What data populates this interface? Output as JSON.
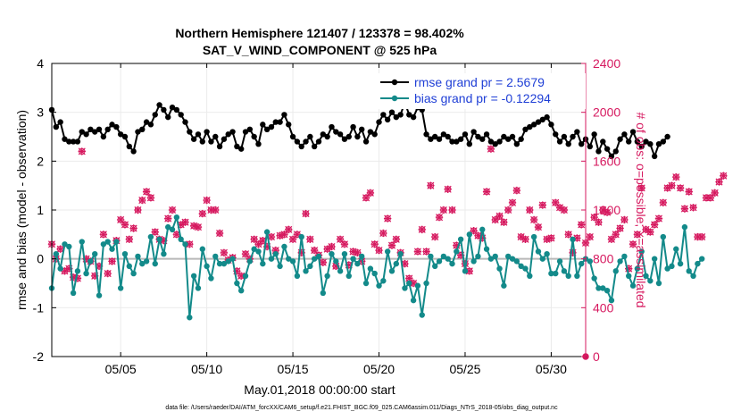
{
  "title_line1": "Northern Hemisphere 121407 / 123378 = 98.402%",
  "title_line2": "SAT_V_WIND_COMPONENT @ 525 hPa",
  "footer": "data file: /Users/raeder/DAI/ATM_forcXX/CAM6_setup/f.e21.FHIST_BGC.f09_025.CAM6assim.011/Diags_NTrS_2018-05/obs_diag_output.nc",
  "colors": {
    "rmse": "#000000",
    "bias": "#138a8a",
    "obs": "#d6195f",
    "zero_line": "#b8b8b8",
    "grid": "#ebebeb"
  },
  "chart_data": {
    "type": "line",
    "xlabel": "May.01,2018 00:00:00 start",
    "ylabel": "rmse and bias (model - observation)",
    "y2label": "# of obs: o=possible; ×=assimilated",
    "xlim": [
      1,
      32
    ],
    "ylim": [
      -2,
      4
    ],
    "y2lim": [
      0,
      2400
    ],
    "x_ticks": [
      5,
      10,
      15,
      20,
      25,
      30
    ],
    "x_tick_labels": [
      "05/05",
      "05/10",
      "05/15",
      "05/20",
      "05/25",
      "05/30"
    ],
    "y_ticks": [
      -2,
      -1,
      0,
      1,
      2,
      3,
      4
    ],
    "y_tick_labels": [
      "-2",
      "-1",
      "0",
      "1",
      "2",
      "3",
      "4"
    ],
    "y2_ticks": [
      0,
      400,
      800,
      1200,
      1600,
      2000,
      2400
    ],
    "y2_tick_labels": [
      "0",
      "400",
      "800",
      "1200",
      "1600",
      "2000",
      "2400"
    ],
    "grid": true,
    "legend_position": "top-right",
    "x_start": 1.0,
    "x_step": 0.25,
    "series": [
      {
        "name": "rmse grand pr = 2.5679",
        "values": [
          3.05,
          2.7,
          2.8,
          2.45,
          2.4,
          2.4,
          2.4,
          2.6,
          2.55,
          2.65,
          2.6,
          2.65,
          2.5,
          2.65,
          2.75,
          2.7,
          2.55,
          2.5,
          2.3,
          2.2,
          2.6,
          2.65,
          2.8,
          2.75,
          2.95,
          3.15,
          3.05,
          2.9,
          3.1,
          3.05,
          2.95,
          2.8,
          2.6,
          2.45,
          2.55,
          2.4,
          2.6,
          2.4,
          2.5,
          2.3,
          2.45,
          2.55,
          2.6,
          2.3,
          2.25,
          2.6,
          2.65,
          2.5,
          2.35,
          2.75,
          2.65,
          2.7,
          2.8,
          2.8,
          2.95,
          2.75,
          2.5,
          2.4,
          2.3,
          2.4,
          2.5,
          2.3,
          2.4,
          2.55,
          2.5,
          2.7,
          2.6,
          2.55,
          2.45,
          2.5,
          2.7,
          2.5,
          2.65,
          2.4,
          2.6,
          2.55,
          2.8,
          2.95,
          2.85,
          3.0,
          2.9,
          2.95,
          3.2,
          2.95,
          2.9,
          3.1,
          3.05,
          2.55,
          2.45,
          2.5,
          2.45,
          2.55,
          2.5,
          2.4,
          2.4,
          2.45,
          2.55,
          2.35,
          2.6,
          2.5,
          2.45,
          2.55,
          2.4,
          2.35,
          2.4,
          2.5,
          2.45,
          2.5,
          2.35,
          2.45,
          2.65,
          2.7,
          2.75,
          2.8,
          2.85,
          2.9,
          2.75,
          2.55,
          2.4,
          2.5,
          2.35,
          2.5,
          2.6,
          2.35,
          2.45,
          2.3,
          2.55,
          2.2,
          2.4,
          2.25,
          2.1,
          2.2,
          2.45,
          2.55,
          2.4,
          2.6,
          2.4,
          2.3,
          2.4,
          2.35,
          2.1,
          2.35,
          2.4,
          2.5
        ]
      },
      {
        "name": "bias grand pr = -0.12294",
        "values": [
          -0.6,
          0.1,
          -0.2,
          0.3,
          0.25,
          -0.7,
          -0.25,
          0.35,
          -0.3,
          -0.05,
          0.1,
          -0.75,
          0.3,
          0.35,
          0.2,
          0.35,
          -0.6,
          0.1,
          -0.15,
          -0.3,
          0.05,
          -0.1,
          -0.05,
          0.45,
          -0.1,
          0.4,
          0.1,
          0.65,
          0.6,
          0.85,
          0.4,
          0.3,
          -1.2,
          -0.35,
          -0.6,
          0.2,
          -0.15,
          -0.4,
          0.05,
          -0.1,
          -0.1,
          -0.05,
          0.0,
          -0.5,
          -0.65,
          -0.35,
          -0.05,
          0.2,
          0.15,
          -0.1,
          0.55,
          0.0,
          0.1,
          -0.15,
          0.25,
          0.0,
          -0.05,
          -0.35,
          0.45,
          -0.25,
          -0.15,
          0.0,
          0.05,
          -0.7,
          -0.35,
          0.1,
          -0.05,
          -0.25,
          0.1,
          -0.35,
          0.0,
          -0.1,
          0.05,
          -0.5,
          -0.2,
          -0.3,
          -0.55,
          -0.45,
          0.15,
          -0.25,
          -0.1,
          0.1,
          -0.6,
          -0.5,
          -0.85,
          -0.55,
          -1.15,
          -0.5,
          0.05,
          -0.15,
          -0.05,
          0.05,
          0.0,
          -0.1,
          0.15,
          0.4,
          -0.25,
          0.5,
          -0.05,
          0.05,
          0.6,
          0.2,
          0.0,
          0.05,
          -0.2,
          -0.55,
          0.05,
          0.0,
          -0.05,
          -0.15,
          -0.2,
          -0.35,
          0.45,
          0.15,
          0.0,
          0.1,
          -0.3,
          -0.3,
          -0.05,
          -0.25,
          -0.35,
          0.4,
          -0.35,
          -0.1,
          0.0,
          -0.05,
          -0.4,
          -0.6,
          -0.6,
          -0.65,
          -0.85,
          -0.25,
          -0.05,
          0.05,
          -0.35,
          -0.55,
          -0.2,
          0.15,
          -0.35,
          -0.45,
          0.0,
          -0.5,
          0.45,
          -0.2,
          -0.15,
          0.2,
          -0.1,
          0.65,
          -0.25,
          -0.35,
          -0.1,
          0.0
        ]
      },
      {
        "name": "# of obs (assimilated)",
        "axis": "right",
        "values": [
          920,
          800,
          880,
          700,
          720,
          650,
          640,
          1680,
          800,
          780,
          660,
          740,
          1000,
          680,
          780,
          950,
          1120,
          1080,
          960,
          1050,
          1200,
          1280,
          1350,
          1300,
          1020,
          960,
          950,
          1130,
          1200,
          1000,
          1080,
          1100,
          920,
          1070,
          1060,
          1170,
          1280,
          1200,
          1200,
          1010,
          850,
          790,
          810,
          700,
          660,
          840,
          800,
          960,
          920,
          950,
          900,
          980,
          870,
          990,
          1000,
          1040,
          960,
          1000,
          850,
          1170,
          960,
          870,
          830,
          770,
          880,
          900,
          740,
          960,
          920,
          750,
          860,
          850,
          780,
          1300,
          1340,
          920,
          870,
          1010,
          1130,
          910,
          960,
          850,
          760,
          640,
          600,
          860,
          1040,
          860,
          1400,
          980,
          1140,
          1200,
          1370,
          1200,
          910,
          830,
          760,
          700,
          1030,
          990,
          970,
          1350,
          1700,
          1120,
          1150,
          1100,
          1200,
          1260,
          1360,
          980,
          960,
          1200,
          1120,
          1060,
          1240,
          960,
          970,
          1260,
          1220,
          1200,
          1000,
          850,
          970,
          1080,
          930,
          980,
          1140,
          1100,
          1200,
          1180,
          960,
          1000,
          1050,
          1120,
          720,
          920,
          1000,
          1380,
          1040,
          1020,
          1080,
          1130,
          1260,
          1380,
          1400,
          1470,
          1380,
          1210,
          1350,
          1220,
          980,
          980,
          1300,
          1300,
          1340,
          1430,
          1480
        ]
      }
    ]
  }
}
